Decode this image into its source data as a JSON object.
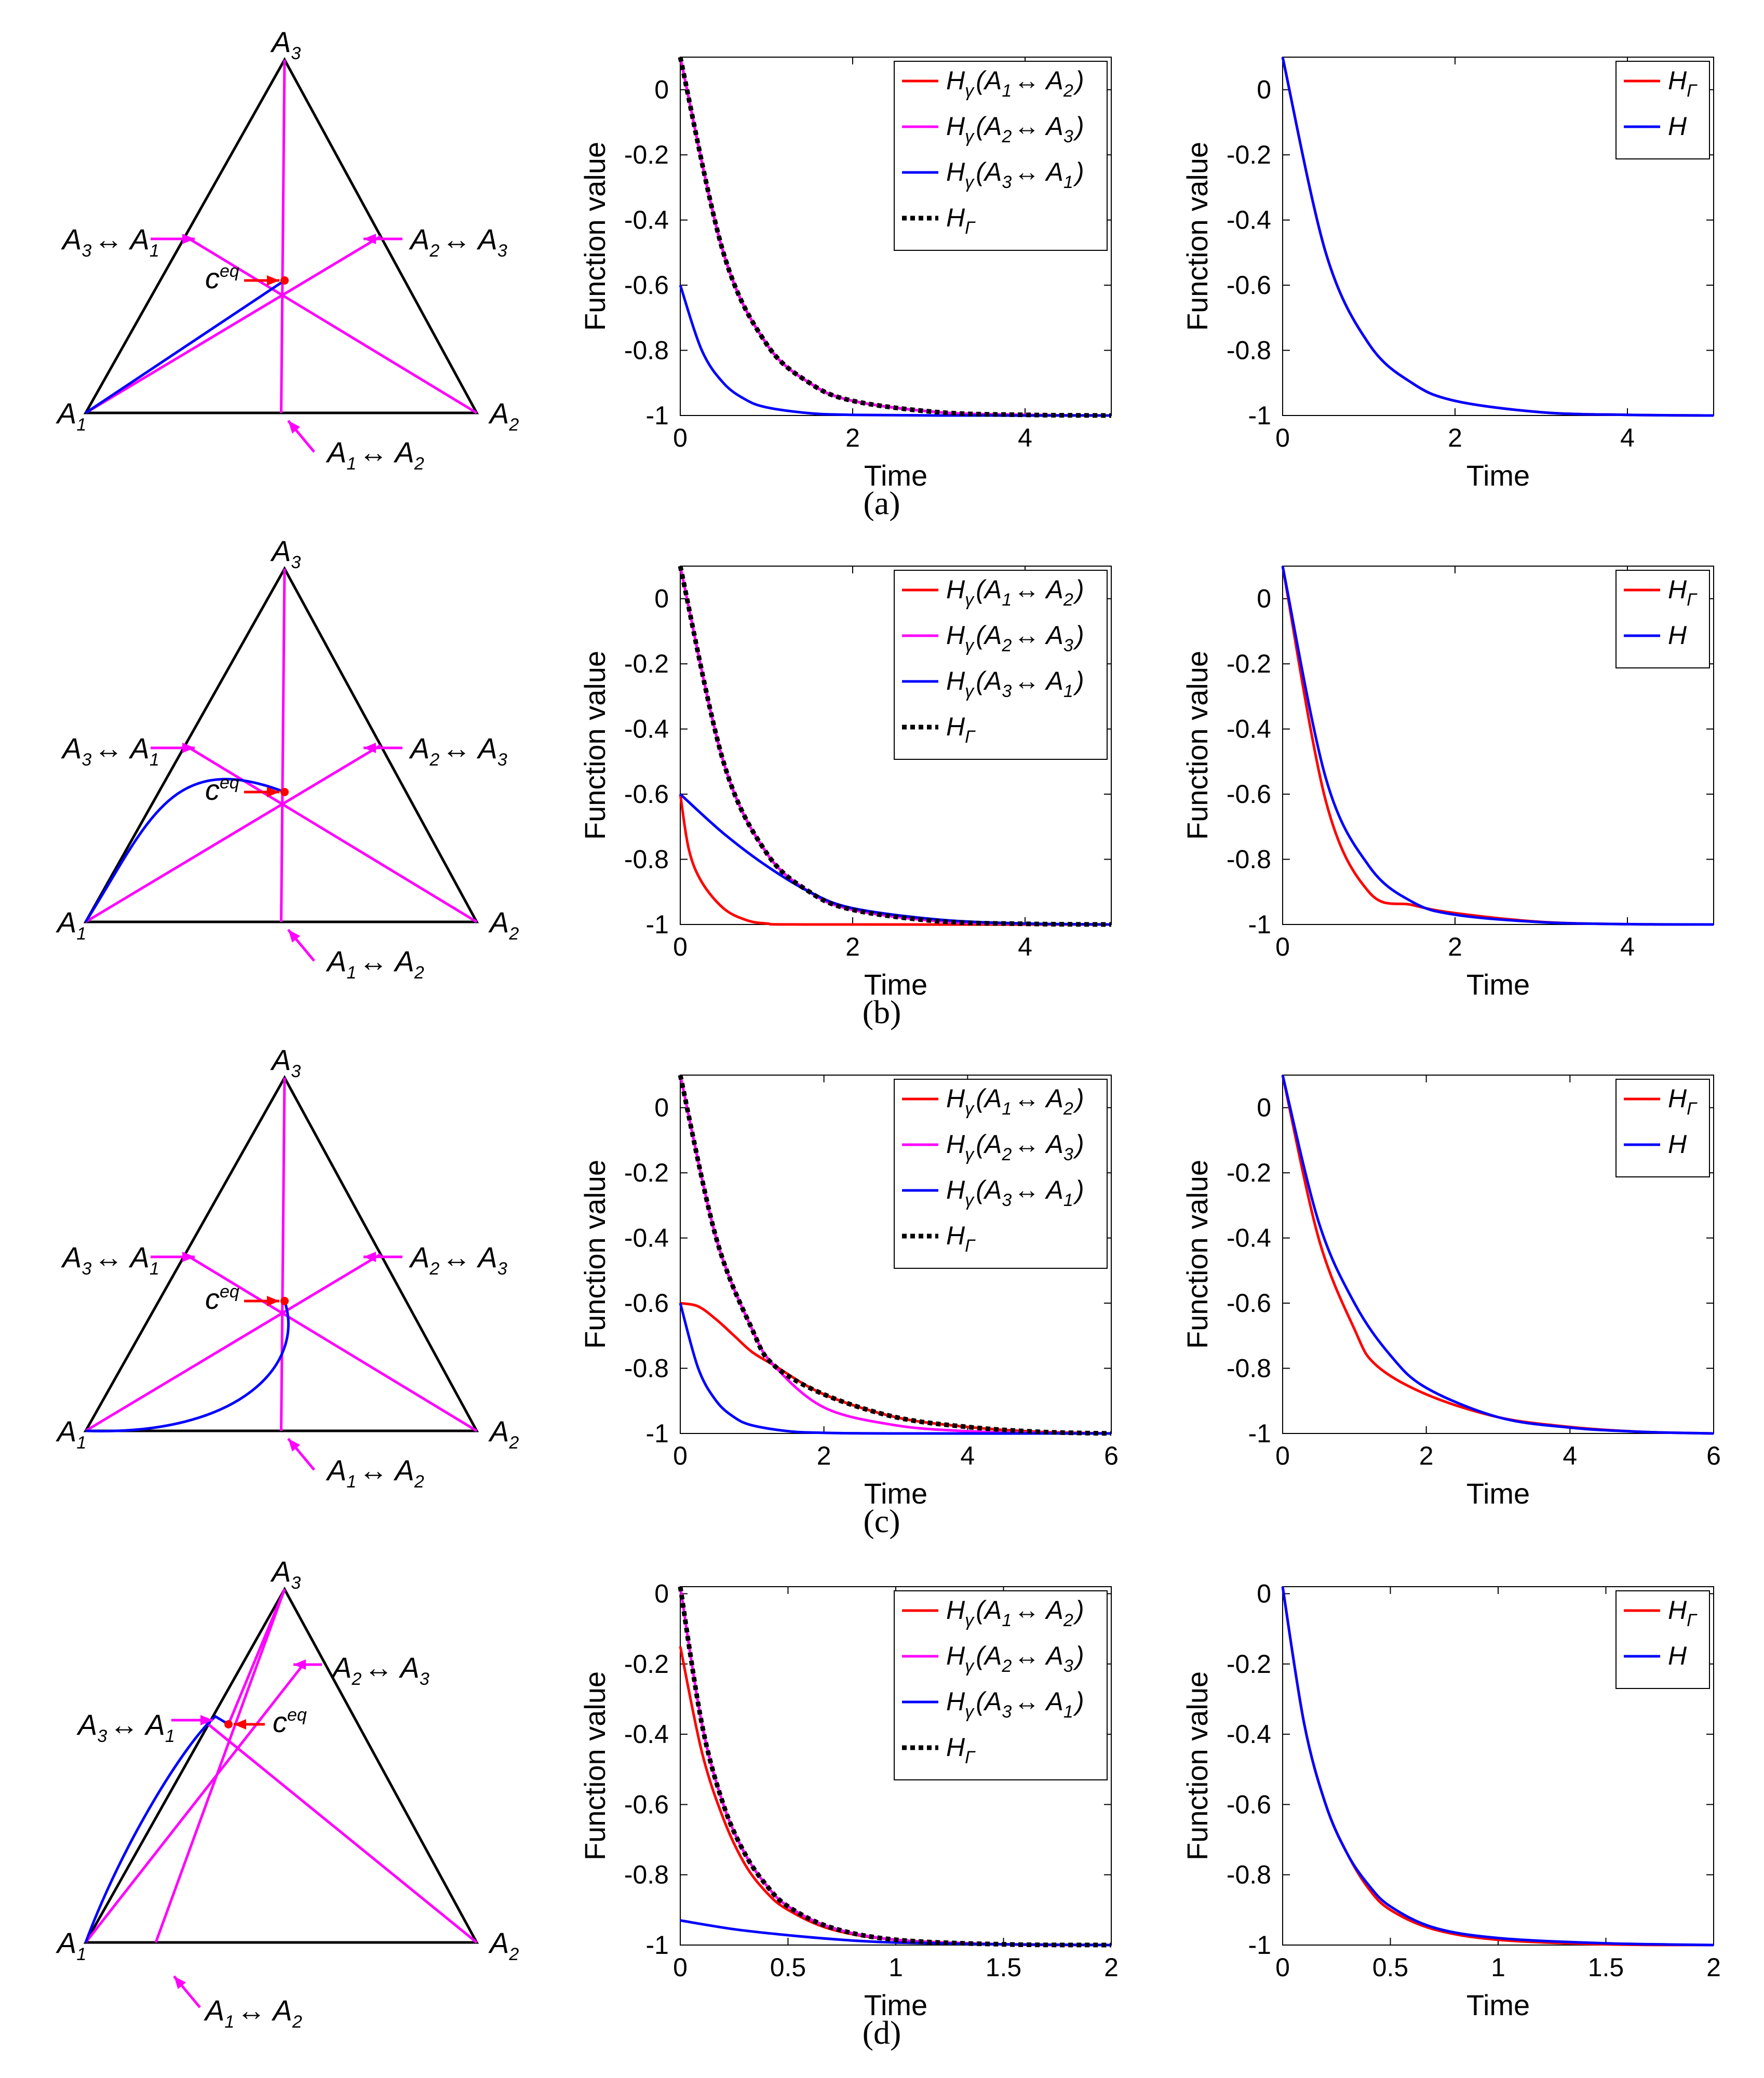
{
  "rows": [
    {
      "caption": "(a)",
      "caption_letter": "a",
      "triangle": {
        "vertex_labels": [
          "A1",
          "A2",
          "A3"
        ],
        "eq_label": "ceq",
        "edge_labels": [
          "A3↔ A1",
          "A2↔ A3",
          "A1↔ A2"
        ]
      },
      "chart_data": [
        {
          "type": "line",
          "xlabel": "Time",
          "ylabel": "Function value",
          "xlim": [
            0,
            5
          ],
          "ylim": [
            -1,
            0.1
          ],
          "xticks": [
            0,
            2,
            4
          ],
          "yticks": [
            0,
            -0.2,
            -0.4,
            -0.6,
            -0.8,
            -1
          ],
          "legend_position": "top-right",
          "series": [
            {
              "name": "Hγ(A1↔ A2)",
              "color": "#ff0000",
              "style": "solid",
              "x": [
                0,
                0.5,
                1,
                1.5,
                2,
                3,
                4,
                5
              ],
              "y": [
                0.1,
                -0.5,
                -0.78,
                -0.9,
                -0.955,
                -0.99,
                -0.998,
                -1
              ]
            },
            {
              "name": "Hγ(A2↔ A3)",
              "color": "#ff00ff",
              "style": "solid",
              "x": [
                0,
                0.5,
                1,
                1.5,
                2,
                3,
                4,
                5
              ],
              "y": [
                0.1,
                -0.5,
                -0.78,
                -0.9,
                -0.955,
                -0.99,
                -0.998,
                -1
              ]
            },
            {
              "name": "Hγ(A3↔ A1)",
              "color": "#0000ff",
              "style": "solid",
              "x": [
                0,
                0.25,
                0.5,
                0.75,
                1,
                1.5,
                2,
                3,
                5
              ],
              "y": [
                -0.6,
                -0.8,
                -0.9,
                -0.95,
                -0.975,
                -0.993,
                -0.998,
                -1,
                -1
              ]
            },
            {
              "name": "HΓ",
              "color": "#000000",
              "style": "dotted",
              "x": [
                0,
                0.5,
                1,
                1.5,
                2,
                3,
                4,
                5
              ],
              "y": [
                0.1,
                -0.5,
                -0.78,
                -0.9,
                -0.955,
                -0.99,
                -0.998,
                -1
              ]
            }
          ]
        },
        {
          "type": "line",
          "xlabel": "Time",
          "ylabel": "Function value",
          "xlim": [
            0,
            5
          ],
          "ylim": [
            -1,
            0.1
          ],
          "xticks": [
            0,
            2,
            4
          ],
          "yticks": [
            0,
            -0.2,
            -0.4,
            -0.6,
            -0.8,
            -1
          ],
          "legend_position": "top-right",
          "series": [
            {
              "name": "HΓ",
              "color": "#ff0000",
              "style": "solid",
              "x": [
                0,
                0.5,
                1,
                1.5,
                2,
                3,
                4,
                5
              ],
              "y": [
                0.1,
                -0.5,
                -0.78,
                -0.9,
                -0.955,
                -0.99,
                -0.998,
                -1
              ]
            },
            {
              "name": "H",
              "color": "#0000ff",
              "style": "solid",
              "x": [
                0,
                0.5,
                1,
                1.5,
                2,
                3,
                4,
                5
              ],
              "y": [
                0.1,
                -0.5,
                -0.78,
                -0.9,
                -0.955,
                -0.99,
                -0.998,
                -1
              ]
            }
          ]
        }
      ]
    },
    {
      "caption": "(b)",
      "caption_letter": "b",
      "triangle": {
        "vertex_labels": [
          "A1",
          "A2",
          "A3"
        ],
        "eq_label": "ceq",
        "edge_labels": [
          "A3↔ A1",
          "A2↔ A3",
          "A1↔ A2"
        ]
      },
      "chart_data": [
        {
          "type": "line",
          "xlabel": "Time",
          "ylabel": "Function value",
          "xlim": [
            0,
            5
          ],
          "ylim": [
            -1,
            0.1
          ],
          "xticks": [
            0,
            2,
            4
          ],
          "yticks": [
            0,
            -0.2,
            -0.4,
            -0.6,
            -0.8,
            -1
          ],
          "legend_position": "top-right",
          "series": [
            {
              "name": "Hγ(A1↔ A2)",
              "color": "#ff0000",
              "style": "solid",
              "x": [
                0,
                0.1,
                0.25,
                0.5,
                0.75,
                1,
                1.5,
                5
              ],
              "y": [
                -0.6,
                -0.77,
                -0.87,
                -0.95,
                -0.985,
                -0.997,
                -1,
                -1
              ]
            },
            {
              "name": "Hγ(A2↔ A3)",
              "color": "#ff00ff",
              "style": "solid",
              "x": [
                0,
                0.5,
                1,
                1.5,
                2,
                3,
                4,
                5
              ],
              "y": [
                0.1,
                -0.5,
                -0.78,
                -0.9,
                -0.955,
                -0.99,
                -0.998,
                -1
              ]
            },
            {
              "name": "Hγ(A3↔ A1)",
              "color": "#0000ff",
              "style": "solid",
              "x": [
                0,
                0.5,
                1,
                1.5,
                2,
                3,
                4,
                5
              ],
              "y": [
                -0.6,
                -0.72,
                -0.82,
                -0.9,
                -0.95,
                -0.985,
                -0.997,
                -1
              ]
            },
            {
              "name": "HΓ",
              "color": "#000000",
              "style": "dotted",
              "x": [
                0,
                0.5,
                1,
                1.5,
                2,
                3,
                4,
                5
              ],
              "y": [
                0.1,
                -0.5,
                -0.78,
                -0.9,
                -0.955,
                -0.99,
                -0.998,
                -1
              ]
            }
          ]
        },
        {
          "type": "line",
          "xlabel": "Time",
          "ylabel": "Function value",
          "xlim": [
            0,
            5
          ],
          "ylim": [
            -1,
            0.1
          ],
          "xticks": [
            0,
            2,
            4
          ],
          "yticks": [
            0,
            -0.2,
            -0.4,
            -0.6,
            -0.8,
            -1
          ],
          "legend_position": "top-right",
          "series": [
            {
              "name": "HΓ",
              "color": "#ff0000",
              "style": "solid",
              "x": [
                0,
                0.5,
                1,
                1.5,
                2,
                3,
                4,
                5
              ],
              "y": [
                0.1,
                -0.62,
                -0.9,
                -0.94,
                -0.965,
                -0.992,
                -0.999,
                -1
              ]
            },
            {
              "name": "H",
              "color": "#0000ff",
              "style": "solid",
              "x": [
                0,
                0.5,
                1,
                1.5,
                2,
                3,
                4,
                5
              ],
              "y": [
                0.1,
                -0.55,
                -0.82,
                -0.93,
                -0.97,
                -0.993,
                -0.999,
                -1
              ]
            }
          ]
        }
      ]
    },
    {
      "caption": "(c)",
      "caption_letter": "c",
      "triangle": {
        "vertex_labels": [
          "A1",
          "A2",
          "A3"
        ],
        "eq_label": "ceq",
        "edge_labels": [
          "A3↔ A1",
          "A2↔ A3",
          "A1↔ A2"
        ]
      },
      "chart_data": [
        {
          "type": "line",
          "xlabel": "Time",
          "ylabel": "Function value",
          "xlim": [
            0,
            6
          ],
          "ylim": [
            -1,
            0.1
          ],
          "xticks": [
            0,
            2,
            4,
            6
          ],
          "yticks": [
            0,
            -0.2,
            -0.4,
            -0.6,
            -0.8,
            -1
          ],
          "legend_position": "top-right",
          "series": [
            {
              "name": "Hγ(A1↔ A2)",
              "color": "#ff0000",
              "style": "solid",
              "x": [
                0,
                0.25,
                0.5,
                0.75,
                1,
                1.3,
                2,
                3,
                4,
                5,
                6
              ],
              "y": [
                -0.6,
                -0.61,
                -0.65,
                -0.7,
                -0.75,
                -0.79,
                -0.88,
                -0.95,
                -0.98,
                -0.995,
                -1
              ]
            },
            {
              "name": "Hγ(A2↔ A3)",
              "color": "#ff00ff",
              "style": "solid",
              "x": [
                0,
                0.5,
                1,
                1.3,
                2,
                3,
                4,
                5,
                6
              ],
              "y": [
                0.1,
                -0.4,
                -0.68,
                -0.79,
                -0.92,
                -0.975,
                -0.993,
                -0.998,
                -1
              ]
            },
            {
              "name": "Hγ(A3↔ A1)",
              "color": "#0000ff",
              "style": "solid",
              "x": [
                0,
                0.25,
                0.5,
                0.75,
                1,
                1.5,
                2,
                3,
                6
              ],
              "y": [
                -0.6,
                -0.8,
                -0.9,
                -0.95,
                -0.975,
                -0.993,
                -0.998,
                -1,
                -1
              ]
            },
            {
              "name": "HΓ",
              "color": "#000000",
              "style": "dotted",
              "x": [
                0,
                0.5,
                1,
                1.3,
                2,
                3,
                4,
                5,
                6
              ],
              "y": [
                0.1,
                -0.4,
                -0.68,
                -0.79,
                -0.88,
                -0.95,
                -0.98,
                -0.995,
                -1
              ]
            }
          ]
        },
        {
          "type": "line",
          "xlabel": "Time",
          "ylabel": "Function value",
          "xlim": [
            0,
            6
          ],
          "ylim": [
            -1,
            0.1
          ],
          "xticks": [
            0,
            2,
            4,
            6
          ],
          "yticks": [
            0,
            -0.2,
            -0.4,
            -0.6,
            -0.8,
            -1
          ],
          "legend_position": "top-right",
          "series": [
            {
              "name": "HΓ",
              "color": "#ff0000",
              "style": "solid",
              "x": [
                0,
                0.5,
                1,
                1.3,
                2,
                3,
                4,
                5,
                6
              ],
              "y": [
                0.1,
                -0.4,
                -0.68,
                -0.79,
                -0.88,
                -0.95,
                -0.98,
                -0.995,
                -1
              ]
            },
            {
              "name": "H",
              "color": "#0000ff",
              "style": "solid",
              "x": [
                0,
                0.5,
                1,
                1.5,
                2,
                3,
                4,
                5,
                6
              ],
              "y": [
                0.1,
                -0.35,
                -0.6,
                -0.76,
                -0.86,
                -0.95,
                -0.982,
                -0.995,
                -1
              ]
            }
          ]
        }
      ]
    },
    {
      "caption": "(d)",
      "caption_letter": "d",
      "triangle": {
        "vertex_labels": [
          "A1",
          "A2",
          "A3"
        ],
        "eq_label": "ceq",
        "edge_labels": [
          "A3↔ A1",
          "A2↔ A3",
          "A1↔ A2"
        ]
      },
      "chart_data": [
        {
          "type": "line",
          "xlabel": "Time",
          "ylabel": "Function value",
          "xlim": [
            0,
            2
          ],
          "ylim": [
            -1,
            0.02
          ],
          "xticks": [
            0,
            0.5,
            1,
            1.5,
            2
          ],
          "yticks": [
            0,
            -0.2,
            -0.4,
            -0.6,
            -0.8,
            -1
          ],
          "legend_position": "top-right",
          "series": [
            {
              "name": "Hγ(A1↔ A2)",
              "color": "#ff0000",
              "style": "solid",
              "x": [
                0,
                0.1,
                0.2,
                0.3,
                0.4,
                0.5,
                0.7,
                1,
                1.5,
                2
              ],
              "y": [
                -0.15,
                -0.45,
                -0.64,
                -0.77,
                -0.85,
                -0.9,
                -0.955,
                -0.985,
                -0.998,
                -1
              ]
            },
            {
              "name": "Hγ(A2↔ A3)",
              "color": "#ff00ff",
              "style": "solid",
              "x": [
                0,
                0.1,
                0.2,
                0.3,
                0.4,
                0.5,
                0.7,
                1,
                1.5,
                2
              ],
              "y": [
                0.02,
                -0.37,
                -0.6,
                -0.74,
                -0.83,
                -0.89,
                -0.95,
                -0.985,
                -0.998,
                -1
              ]
            },
            {
              "name": "Hγ(A3↔ A1)",
              "color": "#0000ff",
              "style": "solid",
              "x": [
                0,
                0.25,
                0.5,
                0.75,
                1,
                1.5,
                2
              ],
              "y": [
                -0.93,
                -0.955,
                -0.972,
                -0.985,
                -0.993,
                -0.998,
                -1
              ]
            },
            {
              "name": "HΓ",
              "color": "#000000",
              "style": "dotted",
              "x": [
                0,
                0.1,
                0.2,
                0.3,
                0.4,
                0.5,
                0.7,
                1,
                1.5,
                2
              ],
              "y": [
                0.02,
                -0.37,
                -0.6,
                -0.74,
                -0.83,
                -0.89,
                -0.95,
                -0.985,
                -0.998,
                -1
              ]
            }
          ]
        },
        {
          "type": "line",
          "xlabel": "Time",
          "ylabel": "Function value",
          "xlim": [
            0,
            2
          ],
          "ylim": [
            -1,
            0.02
          ],
          "xticks": [
            0,
            0.5,
            1,
            1.5,
            2
          ],
          "yticks": [
            0,
            -0.2,
            -0.4,
            -0.6,
            -0.8,
            -1
          ],
          "legend_position": "top-right",
          "series": [
            {
              "name": "HΓ",
              "color": "#ff0000",
              "style": "solid",
              "x": [
                0,
                0.1,
                0.2,
                0.3,
                0.4,
                0.5,
                0.7,
                1,
                1.5,
                2
              ],
              "y": [
                0.02,
                -0.37,
                -0.6,
                -0.74,
                -0.84,
                -0.9,
                -0.955,
                -0.985,
                -0.998,
                -1
              ]
            },
            {
              "name": "H",
              "color": "#0000ff",
              "style": "solid",
              "x": [
                0,
                0.1,
                0.2,
                0.3,
                0.4,
                0.5,
                0.7,
                1,
                1.5,
                2
              ],
              "y": [
                0.02,
                -0.37,
                -0.6,
                -0.74,
                -0.83,
                -0.89,
                -0.95,
                -0.98,
                -0.995,
                -1
              ]
            }
          ]
        }
      ]
    }
  ]
}
